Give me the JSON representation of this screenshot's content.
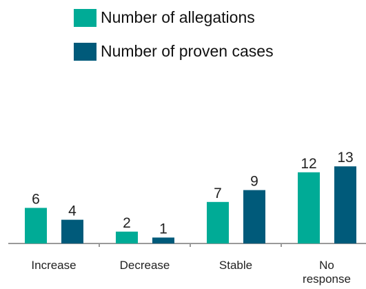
{
  "chart_data": {
    "type": "bar",
    "categories": [
      "Increase",
      "Decrease",
      "Stable",
      "No response"
    ],
    "series": [
      {
        "name": "Number of allegations",
        "color": "#00ab96",
        "values": [
          6,
          2,
          7,
          12
        ]
      },
      {
        "name": "Number of proven cases",
        "color": "#005a7a",
        "values": [
          4,
          1,
          9,
          13
        ]
      }
    ],
    "legend": "top"
  }
}
